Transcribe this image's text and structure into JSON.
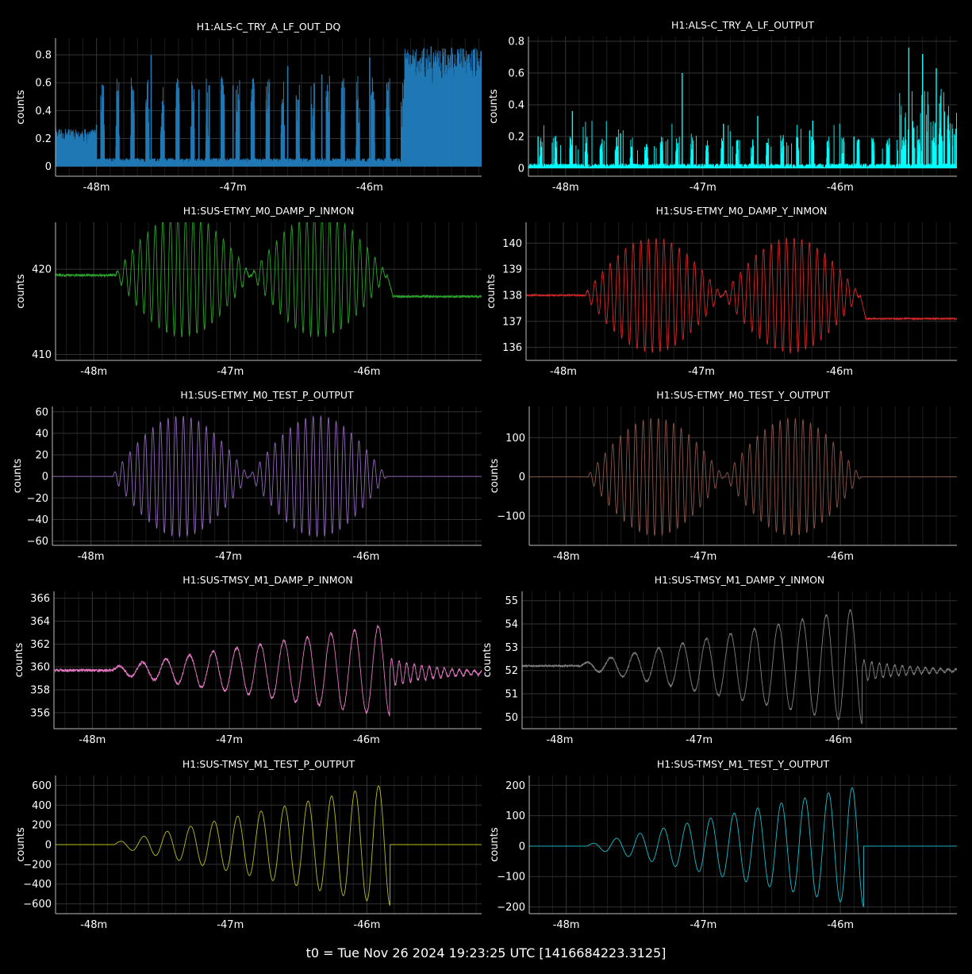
{
  "footer": "t0 = Tue Nov 26 2024 19:23:25 UTC [1416684223.3125]",
  "chart_data": [
    {
      "type": "line",
      "title": "H1:ALS-C_TRY_A_LF_OUT_DQ",
      "ylabel": "counts",
      "color": "#1f77b4",
      "style": "dense-fill",
      "xlim": [
        -48.3,
        -45.18
      ],
      "ylim": [
        -0.07,
        0.92
      ],
      "xticks": [
        -48,
        -47,
        -46
      ],
      "xticklabels": [
        "-48m",
        "-47m",
        "-46m"
      ],
      "yticks": [
        0,
        0.2,
        0.4,
        0.6,
        0.8
      ],
      "yticklabels": [
        "0",
        "0.2",
        "0.4",
        "0.6",
        "0.8"
      ],
      "grid": true,
      "series": [
        {
          "x": [
            -48.3,
            -48.0,
            -47.6,
            -47.25,
            -47.0,
            -46.6,
            -46.35,
            -46.0,
            -45.7,
            -45.55,
            -45.4,
            -45.2
          ],
          "values": [
            0.28,
            0.3,
            0.8,
            0.55,
            0.58,
            0.72,
            0.66,
            0.78,
            0.63,
            0.86,
            0.85,
            0.72
          ]
        }
      ]
    },
    {
      "type": "line",
      "title": "H1:ALS-C_TRY_A_LF_OUTPUT",
      "ylabel": "counts",
      "color": "#00ffff",
      "style": "spikes",
      "xlim": [
        -48.27,
        -45.15
      ],
      "ylim": [
        -0.05,
        0.83
      ],
      "xticks": [
        -48,
        -47,
        -46
      ],
      "xticklabels": [
        "-48m",
        "-47m",
        "-46m"
      ],
      "yticks": [
        0,
        0.2,
        0.4,
        0.6,
        0.8
      ],
      "yticklabels": [
        "0",
        "0.2",
        "0.4",
        "0.6",
        "0.8"
      ],
      "grid": true,
      "series": [
        {
          "x": [
            -48.2,
            -47.95,
            -47.6,
            -47.15,
            -46.85,
            -46.6,
            -46.2,
            -45.9,
            -45.5,
            -45.4,
            -45.3
          ],
          "values": [
            0.2,
            0.36,
            0.22,
            0.6,
            0.28,
            0.33,
            0.3,
            0.2,
            0.76,
            0.72,
            0.63
          ]
        }
      ]
    },
    {
      "type": "line",
      "title": "H1:SUS-ETMY_M0_DAMP_P_INMON",
      "ylabel": "counts",
      "color": "#2ca02c",
      "style": "beat",
      "xlim": [
        -48.28,
        -45.16
      ],
      "ylim": [
        409.3,
        425.5
      ],
      "xticks": [
        -48,
        -47,
        -46
      ],
      "xticklabels": [
        "-48m",
        "-47m",
        "-46m"
      ],
      "yticks": [
        410,
        420
      ],
      "yticklabels": [
        "410",
        "420"
      ],
      "grid": true,
      "series": [
        {
          "pre": 419.3,
          "post": 416.8,
          "amp": 7.2,
          "start": -47.85,
          "end": -45.85,
          "noise": 0.15
        }
      ]
    },
    {
      "type": "line",
      "title": "H1:SUS-ETMY_M0_DAMP_Y_INMON",
      "ylabel": "counts",
      "color": "#d62728",
      "style": "beat",
      "xlim": [
        -48.27,
        -45.15
      ],
      "ylim": [
        135.5,
        140.8
      ],
      "xticks": [
        -48,
        -47,
        -46
      ],
      "xticklabels": [
        "-48m",
        "-47m",
        "-46m"
      ],
      "yticks": [
        136,
        137,
        138,
        139,
        140
      ],
      "yticklabels": [
        "136",
        "137",
        "138",
        "139",
        "140"
      ],
      "grid": true,
      "series": [
        {
          "pre": 138.0,
          "post": 137.1,
          "amp": 2.2,
          "start": -47.85,
          "end": -45.85,
          "noise": 0.03
        }
      ]
    },
    {
      "type": "line",
      "title": "H1:SUS-ETMY_M0_TEST_P_OUTPUT",
      "ylabel": "counts",
      "color": "#9467bd",
      "style": "beat",
      "xlim": [
        -48.28,
        -45.16
      ],
      "ylim": [
        -64,
        65
      ],
      "xticks": [
        -48,
        -47,
        -46
      ],
      "xticklabels": [
        "-48m",
        "-47m",
        "-46m"
      ],
      "yticks": [
        -60,
        -40,
        -20,
        0,
        20,
        40,
        60
      ],
      "yticklabels": [
        "−60",
        "−40",
        "−20",
        "0",
        "20",
        "40",
        "60"
      ],
      "grid": true,
      "series": [
        {
          "pre": 0,
          "post": 0,
          "amp": 56,
          "start": -47.85,
          "end": -45.85,
          "noise": 0
        }
      ]
    },
    {
      "type": "line",
      "title": "H1:SUS-ETMY_M0_TEST_Y_OUTPUT",
      "ylabel": "counts",
      "color": "#8c564b",
      "style": "beat",
      "xlim": [
        -48.27,
        -45.15
      ],
      "ylim": [
        -175,
        180
      ],
      "xticks": [
        -48,
        -47,
        -46
      ],
      "xticklabels": [
        "-48m",
        "-47m",
        "-46m"
      ],
      "yticks": [
        -100,
        0,
        100
      ],
      "yticklabels": [
        "−100",
        "0",
        "100"
      ],
      "grid": true,
      "series": [
        {
          "pre": 0,
          "post": 0,
          "amp": 150,
          "start": -47.85,
          "end": -45.85,
          "noise": 0
        }
      ]
    },
    {
      "type": "line",
      "title": "H1:SUS-TMSY_M1_DAMP_P_INMON",
      "ylabel": "counts",
      "color": "#e377c2",
      "style": "chirp",
      "xlim": [
        -48.28,
        -45.16
      ],
      "ylim": [
        354.6,
        366.6
      ],
      "xticks": [
        -48,
        -47,
        -46
      ],
      "xticklabels": [
        "-48m",
        "-47m",
        "-46m"
      ],
      "yticks": [
        356,
        358,
        360,
        362,
        364,
        366
      ],
      "yticklabels": [
        "356",
        "358",
        "360",
        "362",
        "364",
        "366"
      ],
      "grid": true,
      "series": [
        {
          "base": 359.7,
          "post": 359.5,
          "amp_start": 0.3,
          "amp_end": 4.0,
          "start": -47.85,
          "end": -45.83,
          "noise": 0.12,
          "ring": 1.2
        }
      ]
    },
    {
      "type": "line",
      "title": "H1:SUS-TMSY_M1_DAMP_Y_INMON",
      "ylabel": "counts",
      "color": "#7f7f7f",
      "style": "chirp",
      "xlim": [
        -48.27,
        -45.15
      ],
      "ylim": [
        49.5,
        55.4
      ],
      "xticks": [
        -48,
        -47,
        -46
      ],
      "xticklabels": [
        "-48m",
        "-47m",
        "-46m"
      ],
      "yticks": [
        50,
        51,
        52,
        53,
        54,
        55
      ],
      "yticklabels": [
        "50",
        "51",
        "52",
        "53",
        "54",
        "55"
      ],
      "grid": true,
      "series": [
        {
          "base": 52.2,
          "post": 52.0,
          "amp_start": 0.1,
          "amp_end": 2.5,
          "start": -47.85,
          "end": -45.83,
          "noise": 0.04,
          "ring": 0.45
        }
      ]
    },
    {
      "type": "line",
      "title": "H1:SUS-TMSY_M1_TEST_P_OUTPUT",
      "ylabel": "counts",
      "color": "#bcbd22",
      "style": "chirp",
      "xlim": [
        -48.28,
        -45.16
      ],
      "ylim": [
        -700,
        700
      ],
      "xticks": [
        -48,
        -47,
        -46
      ],
      "xticklabels": [
        "-48m",
        "-47m",
        "-46m"
      ],
      "yticks": [
        -600,
        -400,
        -200,
        0,
        200,
        400,
        600
      ],
      "yticklabels": [
        "−600",
        "−400",
        "−200",
        "0",
        "200",
        "400",
        "600"
      ],
      "grid": true,
      "series": [
        {
          "base": 0,
          "post": 0,
          "amp_start": 20,
          "amp_end": 620,
          "start": -47.85,
          "end": -45.83,
          "noise": 0,
          "ring": 0
        }
      ]
    },
    {
      "type": "line",
      "title": "H1:SUS-TMSY_M1_TEST_Y_OUTPUT",
      "ylabel": "counts",
      "color": "#17becf",
      "style": "chirp",
      "xlim": [
        -48.27,
        -45.15
      ],
      "ylim": [
        -222,
        232
      ],
      "xticks": [
        -48,
        -47,
        -46
      ],
      "xticklabels": [
        "-48m",
        "-47m",
        "-46m"
      ],
      "yticks": [
        -200,
        -100,
        0,
        100,
        200
      ],
      "yticklabels": [
        "−200",
        "−100",
        "0",
        "100",
        "200"
      ],
      "grid": true,
      "series": [
        {
          "base": 0,
          "post": 0,
          "amp_start": 5,
          "amp_end": 200,
          "start": -47.85,
          "end": -45.83,
          "noise": 0,
          "ring": 0
        }
      ]
    }
  ]
}
